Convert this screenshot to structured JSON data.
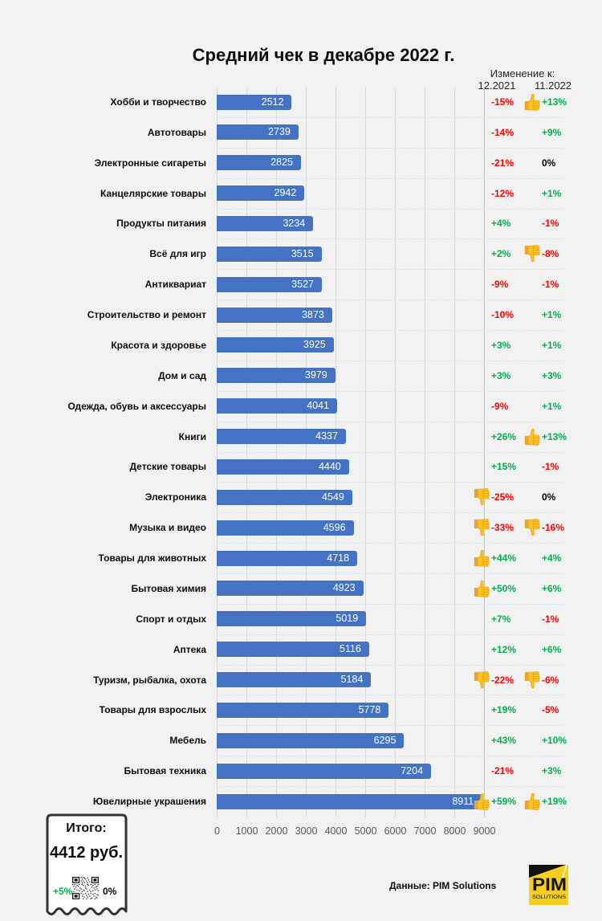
{
  "title": "Средний чек в декабре 2022 г.",
  "change_header": {
    "title": "Изменение к:",
    "col1": "12.2021",
    "col2": "11.2022"
  },
  "colors": {
    "bar": "#4472c4",
    "positive": "#00b050",
    "negative": "#ff0000",
    "neutral": "#000000"
  },
  "chart_data": {
    "type": "bar",
    "orientation": "horizontal",
    "title": "Средний чек в декабре 2022 г.",
    "xlabel": "",
    "ylabel": "",
    "xlim": [
      0,
      9000
    ],
    "xticks": [
      0,
      1000,
      2000,
      3000,
      4000,
      5000,
      6000,
      7000,
      8000,
      9000
    ],
    "grid": true,
    "legend": "none",
    "categories": [
      "Хобби и творчество",
      "Автотовары",
      "Электронные сигареты",
      "Канцелярские товары",
      "Продукты питания",
      "Всё для игр",
      "Антиквариат",
      "Строительство и ремонт",
      "Красота и здоровье",
      "Дом и сад",
      "Одежда, обувь и аксессуары",
      "Книги",
      "Детские товары",
      "Электроника",
      "Музыка и видео",
      "Товары для животных",
      "Бытовая химия",
      "Спорт и отдых",
      "Аптека",
      "Туризм, рыбалка, охота",
      "Товары для взрослых",
      "Мебель",
      "Бытовая техника",
      "Ювелирные украшения"
    ],
    "values": [
      2512,
      2739,
      2825,
      2942,
      3234,
      3515,
      3527,
      3873,
      3925,
      3979,
      4041,
      4337,
      4440,
      4549,
      4596,
      4718,
      4923,
      5019,
      5116,
      5184,
      5778,
      6295,
      7204,
      8911
    ],
    "change_vs_12_2021": [
      "-15%",
      "-14%",
      "-21%",
      "-12%",
      "+4%",
      "+2%",
      "-9%",
      "-10%",
      "+3%",
      "+3%",
      "-9%",
      "+26%",
      "+15%",
      "-25%",
      "-33%",
      "+44%",
      "+50%",
      "+7%",
      "+12%",
      "-22%",
      "+19%",
      "+43%",
      "-21%",
      "+59%"
    ],
    "change_vs_11_2022": [
      "+13%",
      "+9%",
      "0%",
      "+1%",
      "-1%",
      "-8%",
      "-1%",
      "+1%",
      "+1%",
      "+3%",
      "+1%",
      "+13%",
      "-1%",
      "0%",
      "-16%",
      "+4%",
      "+6%",
      "-1%",
      "+6%",
      "-6%",
      "-5%",
      "+10%",
      "+3%",
      "+19%"
    ],
    "icons_vs_12_2021": [
      null,
      null,
      null,
      null,
      null,
      null,
      null,
      null,
      null,
      null,
      null,
      null,
      null,
      "thumbs-down",
      "thumbs-down",
      "thumbs-up",
      "thumbs-up",
      null,
      null,
      "thumbs-down",
      null,
      null,
      null,
      "thumbs-up"
    ],
    "icons_vs_11_2022": [
      "thumbs-up",
      null,
      null,
      null,
      null,
      "thumbs-down",
      null,
      null,
      null,
      null,
      null,
      "thumbs-up",
      null,
      null,
      "thumbs-down",
      null,
      null,
      null,
      null,
      "thumbs-down",
      null,
      null,
      null,
      "thumbs-up"
    ]
  },
  "summary": {
    "label": "Итого:",
    "value": "4412 руб.",
    "change_vs_12_2021": "+5%",
    "change_vs_11_2022": "0%",
    "qr_icon": "qr-code-icon"
  },
  "source": "Данные: PIM Solutions",
  "logo": {
    "main": "PIM",
    "sub": "SOLUTIONS"
  }
}
